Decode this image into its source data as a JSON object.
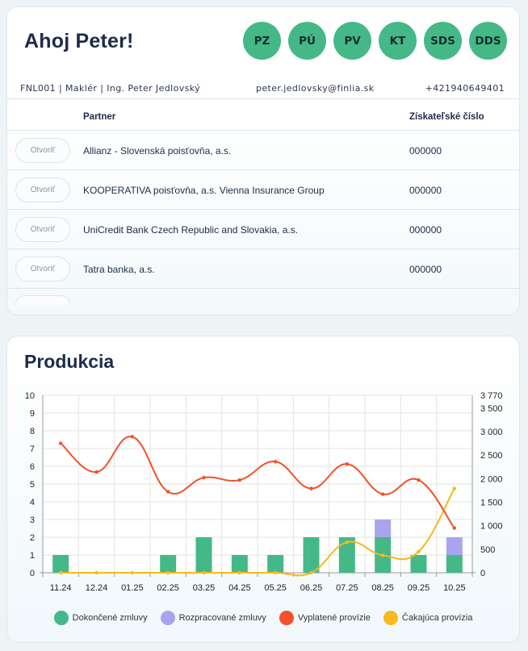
{
  "header": {
    "greeting": "Ahoj Peter!",
    "pills": [
      "PZ",
      "PÚ",
      "PV",
      "KT",
      "SDS",
      "DDS"
    ],
    "pill_color": "#45b888"
  },
  "info": {
    "left": "FNL001 | Maklér | Ing. Peter Jedlovský",
    "email": "peter.jedlovsky@finlia.sk",
    "phone": "+421940649401"
  },
  "partners_table": {
    "headers": {
      "partner": "Partner",
      "number": "Získateľské číslo"
    },
    "open_label": "Otvoriť",
    "rows": [
      {
        "partner": "Allianz - Slovenská poisťovňa, a.s.",
        "number": "000000"
      },
      {
        "partner": "KOOPERATIVA poisťovňa, a.s. Vienna Insurance Group",
        "number": "000000"
      },
      {
        "partner": "UniCredit Bank Czech Republic and Slovakia, a.s.",
        "number": "000000"
      },
      {
        "partner": "Tatra banka, a.s.",
        "number": "000000"
      }
    ]
  },
  "production": {
    "title": "Produkcia"
  },
  "chart_data": {
    "type": "bar",
    "categories": [
      "11.24",
      "12.24",
      "01.25",
      "02.25",
      "03.25",
      "04.25",
      "05.25",
      "06.25",
      "07.25",
      "08.25",
      "09.25",
      "10.25"
    ],
    "y_left": {
      "min": 0,
      "max": 10,
      "ticks": [
        0,
        1,
        2,
        3,
        4,
        5,
        6,
        7,
        8,
        9,
        10
      ]
    },
    "y_right": {
      "min": 0,
      "max": 3770,
      "ticks": [
        0,
        500,
        1000,
        1500,
        2000,
        2500,
        3000,
        3500,
        3770
      ],
      "tick_labels": [
        "0",
        "500",
        "1 000",
        "1 500",
        "2 000",
        "2 500",
        "3 000",
        "3 500",
        "3 770"
      ]
    },
    "grid": true,
    "legend_position": "bottom",
    "series": [
      {
        "name": "Dokončené zmluvy",
        "type": "bar",
        "axis": "left",
        "color": "#45b888",
        "values": [
          1,
          0,
          0,
          1,
          2,
          1,
          1,
          2,
          2,
          2,
          1,
          1
        ]
      },
      {
        "name": "Rozpracované zmluvy",
        "type": "bar",
        "axis": "left",
        "color": "#a9a4ee",
        "values": [
          0,
          0,
          0,
          0,
          0,
          0,
          0,
          0,
          0,
          1,
          0,
          1
        ]
      },
      {
        "name": "Vyplatené provízie",
        "type": "line",
        "axis": "right",
        "color": "#f4502a",
        "values": [
          2750,
          2140,
          2890,
          1720,
          2020,
          1970,
          2360,
          1790,
          2310,
          1670,
          1970,
          950
        ]
      },
      {
        "name": "Čakajúca provízia",
        "type": "line",
        "axis": "right",
        "color": "#f7b91c",
        "values": [
          0,
          0,
          0,
          0,
          0,
          0,
          0,
          0,
          650,
          370,
          450,
          1790
        ]
      }
    ]
  }
}
